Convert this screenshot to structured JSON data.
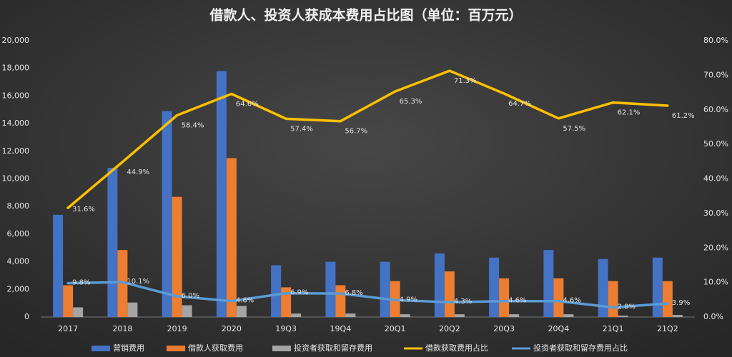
{
  "chart_data": {
    "type": "bar-line",
    "title": "借款人、投资人获成本费用占比图（单位：百万元）",
    "categories": [
      "2017",
      "2018",
      "2019",
      "2020",
      "19Q3",
      "19Q4",
      "20Q1",
      "20Q2",
      "20Q3",
      "20Q4",
      "21Q1",
      "21Q2"
    ],
    "series": [
      {
        "name": "营销费用",
        "color": "#4472c4",
        "kind": "bar",
        "values": [
          7400,
          10800,
          14900,
          17800,
          3750,
          4000,
          4000,
          4600,
          4300,
          4850,
          4200,
          4300
        ]
      },
      {
        "name": "借款人获取费用",
        "color": "#ed7d31",
        "kind": "bar",
        "values": [
          2300,
          4850,
          8700,
          11500,
          2150,
          2300,
          2600,
          3300,
          2800,
          2800,
          2600,
          2600
        ]
      },
      {
        "name": "投资者获取和留存费用",
        "color": "#a5a5a5",
        "kind": "bar",
        "values": [
          700,
          1050,
          850,
          800,
          250,
          250,
          200,
          200,
          200,
          200,
          100,
          150
        ]
      },
      {
        "name": "借款获取费用占比",
        "color": "#ffc000",
        "kind": "line",
        "axis": "y2",
        "values": [
          31.6,
          44.9,
          58.4,
          64.6,
          57.4,
          56.7,
          65.3,
          71.3,
          64.7,
          57.5,
          62.1,
          61.2
        ],
        "value_labels": [
          "31.6%",
          "44.9%",
          "58.4%",
          "64.6%",
          "57.4%",
          "56.7%",
          "65.3%",
          "71.3%",
          "64.7%",
          "57.5%",
          "62.1%",
          "61.2%"
        ]
      },
      {
        "name": "投资者获取和留存费用占比",
        "color": "#5b9bd5",
        "kind": "line",
        "axis": "y2",
        "values": [
          9.8,
          10.1,
          6.0,
          4.6,
          6.9,
          6.8,
          4.9,
          4.3,
          4.6,
          4.6,
          2.8,
          3.9
        ],
        "value_labels": [
          "9.8%",
          "10.1%",
          "6.0%",
          "4.6%",
          "6.9%",
          "6.8%",
          "4.9%",
          "4.3%",
          "4.6%",
          "4.6%",
          "2.8%",
          "3.9%"
        ]
      }
    ],
    "ylim": [
      0,
      20000
    ],
    "yticks": [
      0,
      {
        "value": 2000,
        "label": "2,000"
      },
      {
        "value": 4000,
        "label": "4,000"
      },
      {
        "value": 6000,
        "label": "6,000"
      },
      {
        "value": 8000,
        "label": "8,000"
      },
      {
        "value": 10000,
        "label": "10,000"
      },
      {
        "value": 12000,
        "label": "12,000"
      },
      {
        "value": 14000,
        "label": "14,000"
      },
      {
        "value": 16000,
        "label": "16,000"
      },
      {
        "value": 18000,
        "label": "18,000"
      },
      {
        "value": 20000,
        "label": "20,000"
      }
    ],
    "y2lim": [
      0,
      80
    ],
    "y2ticks": [
      {
        "value": 0,
        "label": "0.0%"
      },
      {
        "value": 10,
        "label": "10.0%"
      },
      {
        "value": 20,
        "label": "20.0%"
      },
      {
        "value": 30,
        "label": "30.0%"
      },
      {
        "value": 40,
        "label": "40.0%"
      },
      {
        "value": 50,
        "label": "50.0%"
      },
      {
        "value": 60,
        "label": "60.0%"
      },
      {
        "value": 70,
        "label": "70.0%"
      },
      {
        "value": 80,
        "label": "80.0%"
      }
    ],
    "grid": false,
    "legend": "bottom"
  }
}
